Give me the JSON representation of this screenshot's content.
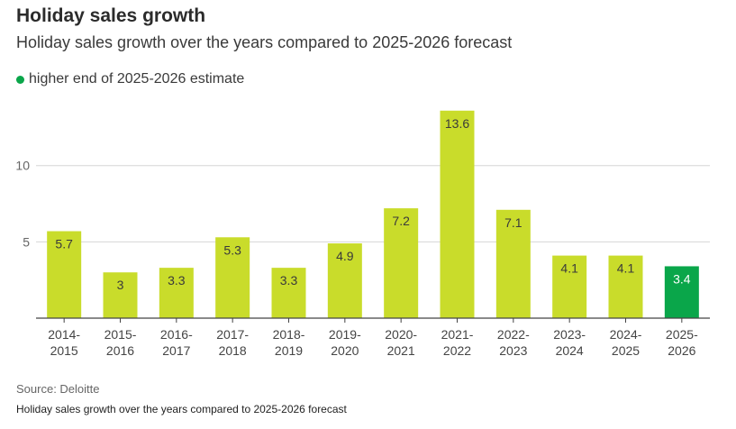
{
  "header": {
    "title": "Holiday sales growth",
    "subtitle": "Holiday sales growth over the years compared to 2025-2026 forecast"
  },
  "legend": {
    "label": "higher end of 2025-2026 estimate",
    "color": "#0aa64a"
  },
  "footer": {
    "source": "Source: Deloitte",
    "note": "Holiday sales growth over the years compared to 2025-2026 forecast"
  },
  "chart_data": {
    "type": "bar",
    "categories": [
      [
        "2014-",
        "2015"
      ],
      [
        "2015-",
        "2016"
      ],
      [
        "2016-",
        "2017"
      ],
      [
        "2017-",
        "2018"
      ],
      [
        "2018-",
        "2019"
      ],
      [
        "2019-",
        "2020"
      ],
      [
        "2020-",
        "2021"
      ],
      [
        "2021-",
        "2022"
      ],
      [
        "2022-",
        "2023"
      ],
      [
        "2023-",
        "2024"
      ],
      [
        "2024-",
        "2025"
      ],
      [
        "2025-",
        "2026"
      ]
    ],
    "values": [
      5.7,
      3,
      3.3,
      5.3,
      3.3,
      4.9,
      7.2,
      13.6,
      7.1,
      4.1,
      4.1,
      3.4
    ],
    "value_labels": [
      "5.7",
      "3",
      "3.3",
      "5.3",
      "3.3",
      "4.9",
      "7.2",
      "13.6",
      "7.1",
      "4.1",
      "4.1",
      "3.4"
    ],
    "bar_color": "#c9dc2b",
    "highlight_index": 11,
    "highlight_color": "#0aa64a",
    "ylim": [
      0,
      14
    ],
    "yticks": [
      5,
      10
    ],
    "grid": true,
    "legend_position": "top-left"
  }
}
